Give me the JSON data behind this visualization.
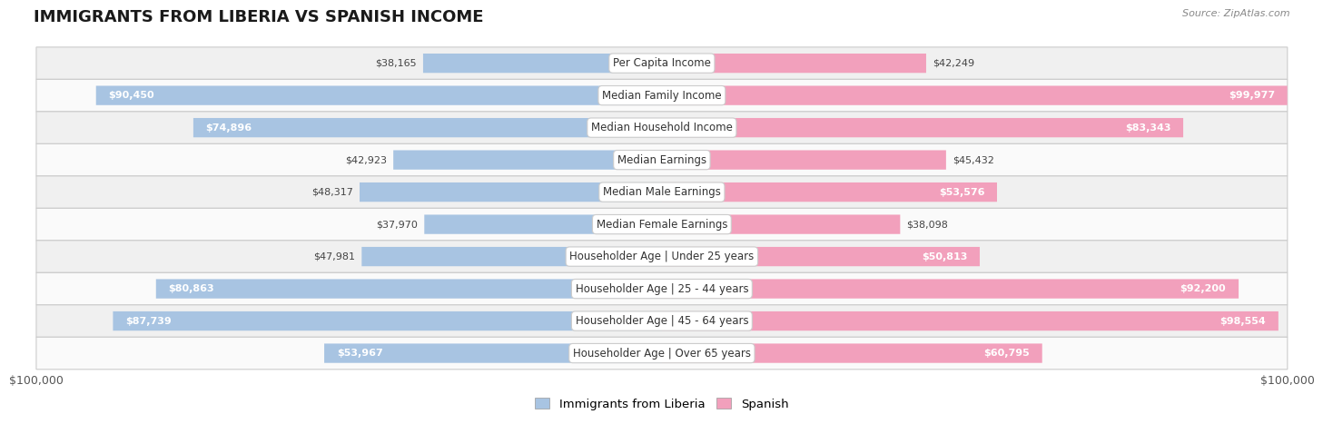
{
  "title": "IMMIGRANTS FROM LIBERIA VS SPANISH INCOME",
  "source": "Source: ZipAtlas.com",
  "categories": [
    "Per Capita Income",
    "Median Family Income",
    "Median Household Income",
    "Median Earnings",
    "Median Male Earnings",
    "Median Female Earnings",
    "Householder Age | Under 25 years",
    "Householder Age | 25 - 44 years",
    "Householder Age | 45 - 64 years",
    "Householder Age | Over 65 years"
  ],
  "liberia_values": [
    38165,
    90450,
    74896,
    42923,
    48317,
    37970,
    47981,
    80863,
    87739,
    53967
  ],
  "spanish_values": [
    42249,
    99977,
    83343,
    45432,
    53576,
    38098,
    50813,
    92200,
    98554,
    60795
  ],
  "liberia_color": "#a8c4e2",
  "spanish_color": "#f2a0bc",
  "max_value": 100000,
  "row_colors": [
    "#f0f0f0",
    "#fafafa"
  ],
  "xlabel_left": "$100,000",
  "xlabel_right": "$100,000",
  "legend_liberia": "Immigrants from Liberia",
  "legend_spanish": "Spanish",
  "title_fontsize": 13,
  "source_fontsize": 8
}
